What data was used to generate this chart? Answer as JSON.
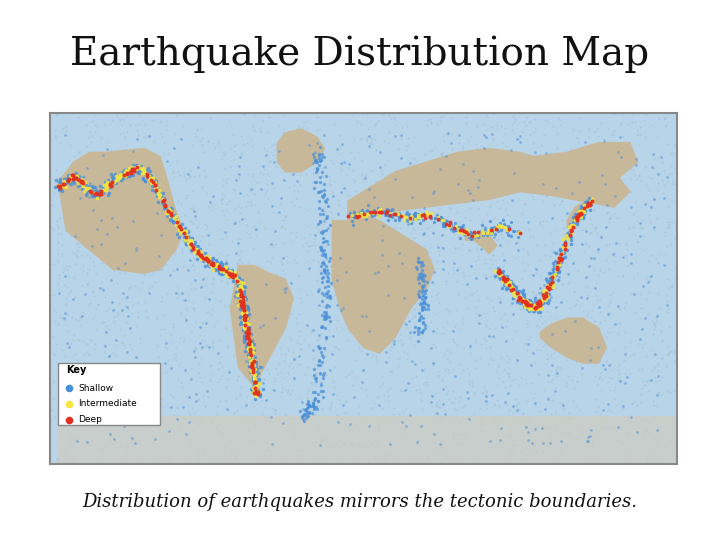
{
  "title": "Earthquake Distribution Map",
  "caption": "Distribution of earthquakes mirrors the tectonic boundaries.",
  "title_fontsize": 28,
  "caption_fontsize": 13,
  "background_color": "#ffffff",
  "map_bg_ocean": "#b8d4e8",
  "map_bg_land": "#c8b89a",
  "border_color": "#888888",
  "shallow_color": "#4a90d9",
  "intermediate_color": "#f5e642",
  "deep_color": "#e03020",
  "key_title": "Key",
  "legend_labels": [
    "Shallow",
    "Intermediate",
    "Deep"
  ],
  "legend_colors": [
    "#4a90d9",
    "#f5e642",
    "#e03020"
  ],
  "fig_width": 7.2,
  "fig_height": 5.4
}
